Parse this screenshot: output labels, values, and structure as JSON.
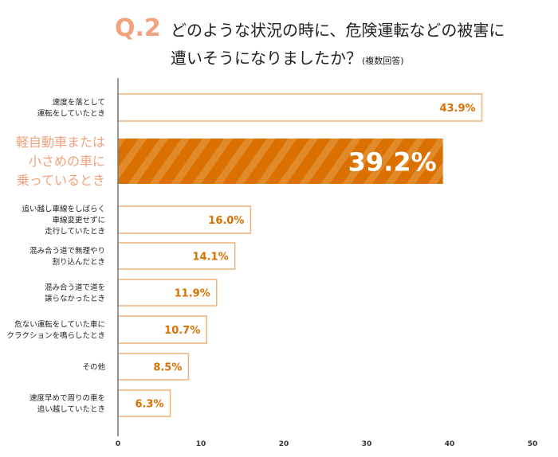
{
  "header": {
    "q_label": "Q.2",
    "title_line1": "どのような状況の時に、危険運転などの被害に",
    "title_line2": "遭いそうになりましたか？",
    "note": "(複数回答)"
  },
  "chart_data": {
    "type": "bar",
    "orientation": "horizontal",
    "categories": [
      "速度を落として\n運転をしていたとき",
      "軽自動車または\n小さめの車に\n乗っているとき",
      "追い越し車線をしばらく\n車線変更せずに\n走行していたとき",
      "混み合う道で無理やり\n割り込んだとき",
      "混み合う道で道を\n譲らなかったとき",
      "危ない運転をしていた車に\nクラクションを鳴らしたとき",
      "その他",
      "速度早めで周りの車を\n追い越していたとき"
    ],
    "values": [
      43.9,
      39.2,
      16.0,
      14.1,
      11.9,
      10.7,
      8.5,
      6.3
    ],
    "value_labels": [
      "43.9%",
      "39.2%",
      "16.0%",
      "14.1%",
      "11.9%",
      "10.7%",
      "8.5%",
      "6.3%"
    ],
    "highlight_index": 1,
    "xlim": [
      0,
      50
    ],
    "xticks": [
      "0",
      "10",
      "20",
      "30",
      "40",
      "50"
    ],
    "colors": {
      "bar_border": "#f0b27a",
      "highlight": "#d97000",
      "highlight_stripe": "#e08a2a",
      "value_text": "#d97000",
      "highlight_label": "#f2a27c"
    }
  }
}
